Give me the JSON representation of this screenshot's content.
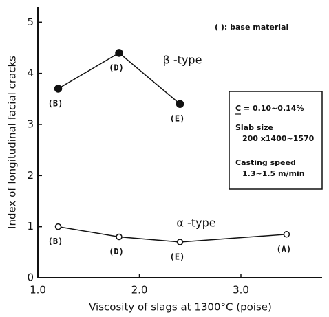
{
  "chart_data": {
    "type": "line",
    "xlabel": "Viscosity of slags at 1300°C (poise)",
    "ylabel": "Index of longitudinal facial cracks",
    "xlim": [
      1.0,
      3.8
    ],
    "ylim": [
      0,
      5.3
    ],
    "xticks": [
      {
        "value": 1.0,
        "label": "1.0"
      },
      {
        "value": 2.0,
        "label": "2.0"
      },
      {
        "value": 3.0,
        "label": "3.0"
      }
    ],
    "yticks": [
      0,
      1,
      2,
      3,
      4,
      5
    ],
    "series": [
      {
        "name": "β -type",
        "color": "#111111",
        "marker": "filled",
        "x": [
          1.2,
          1.8,
          2.4
        ],
        "values": [
          3.7,
          4.4,
          3.4
        ],
        "point_labels": [
          "(B)",
          "(D)",
          "(E)"
        ]
      },
      {
        "name": "α -type",
        "color": "#111111",
        "marker": "open",
        "x": [
          1.2,
          1.8,
          2.4,
          3.45
        ],
        "values": [
          1.0,
          0.8,
          0.7,
          0.85
        ],
        "point_labels": [
          "(B)",
          "(D)",
          "(E)",
          "(A)"
        ]
      }
    ],
    "base_note": "( ): base material",
    "conditions": [
      "C = 0.10~0.14%",
      "Slab size",
      "200 x1400~1570",
      "Casting speed",
      "1.3~1.5 m/min"
    ]
  }
}
